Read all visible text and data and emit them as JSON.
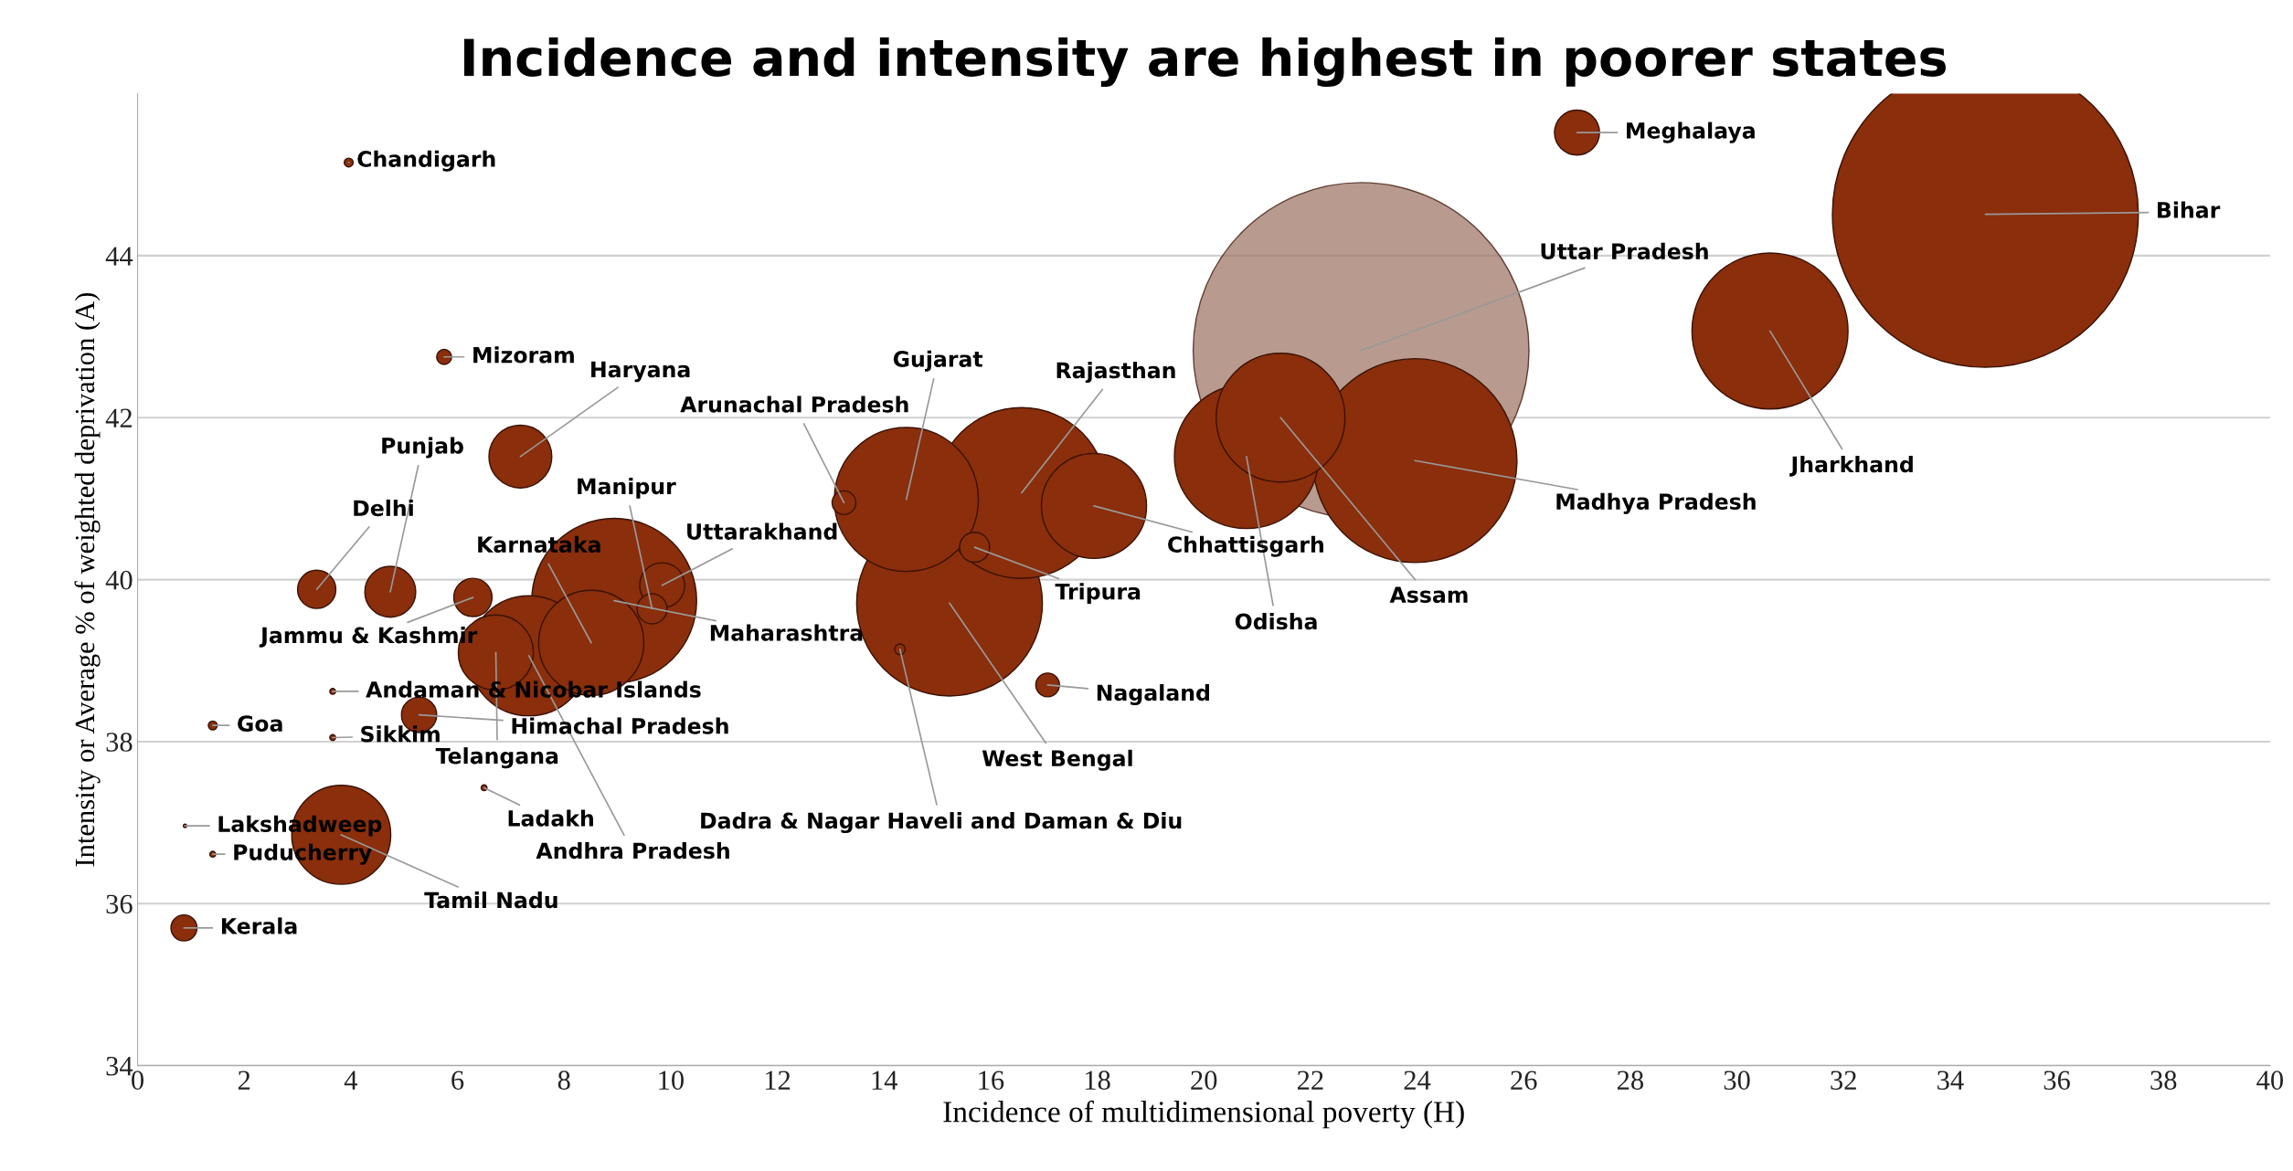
{
  "chart_data": {
    "type": "bubble",
    "title": "Incidence and intensity are highest in poorer states",
    "xlabel": "Incidence of multidimensional poverty (H)",
    "ylabel": "Intensity or Average % of weighted deprivation (A)",
    "xlim": [
      0,
      40
    ],
    "xticks": [
      0,
      2,
      4,
      6,
      8,
      10,
      12,
      14,
      16,
      18,
      20,
      22,
      24,
      26,
      28,
      30,
      32,
      34,
      36,
      38,
      40
    ],
    "ylim": [
      34,
      46
    ],
    "yticks": [
      34,
      36,
      38,
      40,
      42,
      44
    ],
    "grid": "y",
    "marker": "circle",
    "series": [
      {
        "x": [
          3.96,
          27.0,
          34.66,
          22.95,
          30.62,
          23.96,
          21.44,
          20.8,
          17.94,
          16.58,
          14.42,
          13.25,
          15.7,
          15.23,
          14.3,
          17.07,
          8.94,
          9.84,
          9.65,
          8.51,
          7.34,
          5.28,
          6.72,
          6.29,
          4.74,
          3.36,
          7.18,
          5.75,
          3.66,
          3.66,
          1.41,
          6.5,
          0.89,
          1.41,
          3.82,
          0.87
        ],
        "values": [
          45.15,
          45.52,
          44.51,
          42.83,
          43.07,
          41.47,
          42.0,
          41.52,
          40.91,
          41.07,
          40.99,
          40.95,
          40.4,
          39.71,
          39.14,
          38.7,
          39.74,
          39.93,
          39.64,
          39.22,
          39.06,
          38.33,
          39.1,
          39.78,
          39.85,
          39.88,
          41.52,
          42.75,
          38.62,
          38.05,
          38.2,
          37.43,
          36.96,
          36.61,
          36.85,
          35.7
        ],
        "sizes": [
          0.0007,
          0.018,
          0.83,
          1,
          0.216,
          0.369,
          0.147,
          0.184,
          0.098,
          0.259,
          0.184,
          0.005,
          0.008,
          0.306,
          0.001,
          0.005,
          0.241,
          0.018,
          0.008,
          0.098,
          0.128,
          0.011,
          0.05,
          0.013,
          0.023,
          0.013,
          0.035,
          0.002,
          0.0003,
          0.0003,
          0.0007,
          0.0003,
          0.0001,
          0.0003,
          0.087,
          0.006
        ],
        "colors": [
          "#8a2e0c",
          "#8a2e0c",
          "#8a2e0c",
          "#a07868",
          "#8a2e0c",
          "#8a2e0c",
          "#8a2e0c",
          "#8a2e0c",
          "#8a2e0c",
          "#8a2e0c",
          "#8a2e0c",
          "#8a2e0c",
          "#8a2e0c",
          "#8a2e0c",
          "#8a2e0c",
          "#8a2e0c",
          "#8a2e0c",
          "#8a2e0c",
          "#8a2e0c",
          "#8a2e0c",
          "#8a2e0c",
          "#8a2e0c",
          "#8a2e0c",
          "#8a2e0c",
          "#8a2e0c",
          "#8a2e0c",
          "#8a2e0c",
          "#8a2e0c",
          "#8a2e0c",
          "#8a2e0c",
          "#8a2e0c",
          "#8a2e0c",
          "#8a2e0c",
          "#8a2e0c",
          "#8a2e0c",
          "#8a2e0c"
        ]
      }
    ],
    "annotations": [
      {
        "text": "Chandigarh",
        "x": 3.96,
        "y": 45.15
      },
      {
        "text": "Meghalaya",
        "x": 27.0,
        "y": 45.52
      },
      {
        "text": "Bihar",
        "x": 34.66,
        "y": 44.51
      },
      {
        "text": "Uttar Pradesh",
        "x": 22.95,
        "y": 42.83
      },
      {
        "text": "Jharkhand",
        "x": 30.62,
        "y": 43.07
      },
      {
        "text": "Madhya Pradesh",
        "x": 23.96,
        "y": 41.47
      },
      {
        "text": "Assam",
        "x": 21.44,
        "y": 42.0
      },
      {
        "text": "Odisha",
        "x": 20.8,
        "y": 41.52
      },
      {
        "text": "Chhattisgarh",
        "x": 17.94,
        "y": 40.91
      },
      {
        "text": "Rajasthan",
        "x": 16.58,
        "y": 41.07
      },
      {
        "text": "Gujarat",
        "x": 14.42,
        "y": 40.99
      },
      {
        "text": "Arunachal Pradesh",
        "x": 13.25,
        "y": 40.95
      },
      {
        "text": "Tripura",
        "x": 15.7,
        "y": 40.4
      },
      {
        "text": "West Bengal",
        "x": 15.23,
        "y": 39.71
      },
      {
        "text": "Dadra & Nagar Haveli and Daman & Diu",
        "x": 14.3,
        "y": 39.14
      },
      {
        "text": "Nagaland",
        "x": 17.07,
        "y": 38.7
      },
      {
        "text": "Maharashtra",
        "x": 8.94,
        "y": 39.74
      },
      {
        "text": "Uttarakhand",
        "x": 9.84,
        "y": 39.93
      },
      {
        "text": "Manipur",
        "x": 9.65,
        "y": 39.64
      },
      {
        "text": "Karnataka",
        "x": 8.51,
        "y": 39.22
      },
      {
        "text": "Andhra Pradesh",
        "x": 7.34,
        "y": 39.06
      },
      {
        "text": "Himachal Pradesh",
        "x": 5.28,
        "y": 38.33
      },
      {
        "text": "Telangana",
        "x": 6.72,
        "y": 39.1
      },
      {
        "text": "Jammu & Kashmir",
        "x": 6.29,
        "y": 39.78
      },
      {
        "text": "Punjab",
        "x": 4.74,
        "y": 39.85
      },
      {
        "text": "Delhi",
        "x": 3.36,
        "y": 39.88
      },
      {
        "text": "Haryana",
        "x": 7.18,
        "y": 41.52
      },
      {
        "text": "Mizoram",
        "x": 5.75,
        "y": 42.75
      },
      {
        "text": "Andaman & Nicobar Islands",
        "x": 3.66,
        "y": 38.62
      },
      {
        "text": "Sikkim",
        "x": 3.66,
        "y": 38.05
      },
      {
        "text": "Goa",
        "x": 1.41,
        "y": 38.2
      },
      {
        "text": "Ladakh",
        "x": 6.5,
        "y": 37.43
      },
      {
        "text": "Lakshadweep",
        "x": 0.89,
        "y": 36.96
      },
      {
        "text": "Puducherry",
        "x": 1.41,
        "y": 36.61
      },
      {
        "text": "Tamil Nadu",
        "x": 3.82,
        "y": 36.85
      },
      {
        "text": "Kerala",
        "x": 0.87,
        "y": 35.7
      }
    ]
  }
}
